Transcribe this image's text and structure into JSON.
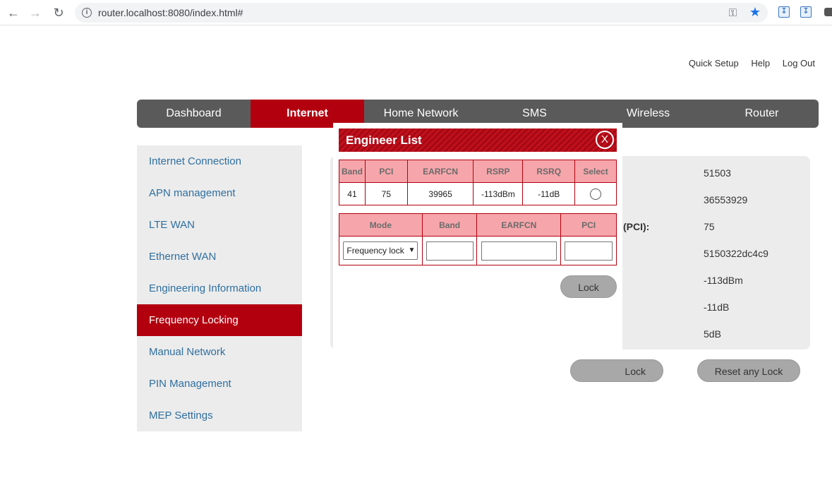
{
  "browser": {
    "url": "router.localhost:8080/index.html#"
  },
  "top_links": [
    "Quick Setup",
    "Help",
    "Log Out"
  ],
  "main_nav": [
    "Dashboard",
    "Internet",
    "Home Network",
    "SMS",
    "Wireless",
    "Router"
  ],
  "sidebar": [
    "Internet Connection",
    "APN management",
    "LTE WAN",
    "Ethernet WAN",
    "Engineering Information",
    "Frequency Locking",
    "Manual Network",
    "PIN Management",
    "MEP Settings"
  ],
  "info_panel": {
    "label_pci": "(PCI):",
    "values": [
      "51503",
      "36553929",
      "75",
      "5150322dc4c9",
      "-113dBm",
      "-11dB",
      "5dB"
    ],
    "lock_button": "Lock",
    "reset_button": "Reset any Lock"
  },
  "modal": {
    "title": "Engineer List",
    "close": "X",
    "list_headers": [
      "Band",
      "PCI",
      "EARFCN",
      "RSRP",
      "RSRQ",
      "Select"
    ],
    "list_row": [
      "41",
      "75",
      "39965",
      "-113dBm",
      "-11dB"
    ],
    "lock_headers": [
      "Mode",
      "Band",
      "EARFCN",
      "PCI"
    ],
    "mode_value": "Frequency lock",
    "lock_button": "Lock"
  },
  "colors": {
    "accent": "#b3000f",
    "nav": "#5a5a5a",
    "link": "#2f6f9f"
  }
}
